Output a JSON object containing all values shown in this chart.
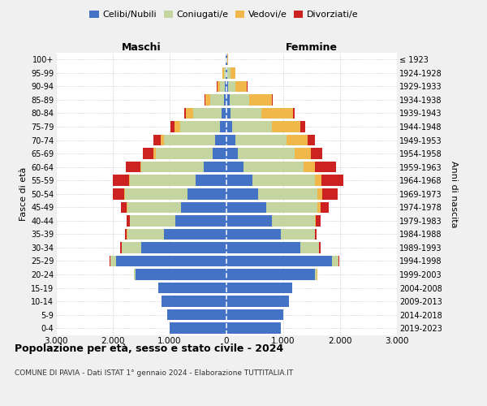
{
  "age_groups": [
    "0-4",
    "5-9",
    "10-14",
    "15-19",
    "20-24",
    "25-29",
    "30-34",
    "35-39",
    "40-44",
    "45-49",
    "50-54",
    "55-59",
    "60-64",
    "65-69",
    "70-74",
    "75-79",
    "80-84",
    "85-89",
    "90-94",
    "95-99",
    "100+"
  ],
  "birth_years": [
    "2019-2023",
    "2014-2018",
    "2009-2013",
    "2004-2008",
    "1999-2003",
    "1994-1998",
    "1989-1993",
    "1984-1988",
    "1979-1983",
    "1974-1978",
    "1969-1973",
    "1964-1968",
    "1959-1963",
    "1954-1958",
    "1949-1953",
    "1944-1948",
    "1939-1943",
    "1934-1938",
    "1929-1933",
    "1924-1928",
    "≤ 1923"
  ],
  "colors": {
    "celibi": "#4472C4",
    "coniugati": "#c5d5a0",
    "vedovi": "#f0b84a",
    "divorziati": "#cc2222"
  },
  "male": {
    "celibi": [
      1000,
      1050,
      1150,
      1200,
      1600,
      1950,
      1500,
      1100,
      900,
      800,
      680,
      550,
      400,
      250,
      200,
      120,
      80,
      40,
      30,
      20,
      10
    ],
    "coniugati": [
      0,
      0,
      0,
      0,
      30,
      100,
      350,
      650,
      800,
      950,
      1100,
      1150,
      1100,
      1000,
      900,
      700,
      500,
      250,
      80,
      30,
      5
    ],
    "vedovi": [
      0,
      0,
      0,
      0,
      0,
      0,
      0,
      5,
      5,
      10,
      15,
      20,
      20,
      40,
      60,
      100,
      130,
      80,
      50,
      20,
      5
    ],
    "divorziati": [
      0,
      0,
      0,
      0,
      5,
      5,
      20,
      30,
      50,
      100,
      200,
      280,
      250,
      180,
      120,
      60,
      30,
      10,
      5,
      0,
      0
    ]
  },
  "female": {
    "nubili": [
      950,
      1000,
      1100,
      1150,
      1550,
      1850,
      1300,
      950,
      800,
      700,
      550,
      450,
      300,
      200,
      150,
      100,
      70,
      50,
      30,
      20,
      10
    ],
    "coniugate": [
      0,
      0,
      0,
      0,
      40,
      120,
      330,
      600,
      750,
      900,
      1050,
      1100,
      1050,
      1000,
      900,
      700,
      550,
      350,
      130,
      50,
      5
    ],
    "vedove": [
      0,
      0,
      0,
      0,
      5,
      5,
      5,
      10,
      20,
      50,
      80,
      120,
      200,
      280,
      380,
      500,
      550,
      400,
      200,
      80,
      10
    ],
    "divorziate": [
      0,
      0,
      0,
      0,
      5,
      5,
      20,
      30,
      80,
      150,
      280,
      380,
      380,
      200,
      120,
      80,
      30,
      20,
      10,
      0,
      0
    ]
  },
  "title": "Popolazione per età, sesso e stato civile - 2024",
  "subtitle": "COMUNE DI PAVIA - Dati ISTAT 1° gennaio 2024 - Elaborazione TUTTITALIA.IT",
  "xlabel_left": "Maschi",
  "xlabel_right": "Femmine",
  "ylabel_left": "Fasce di età",
  "ylabel_right": "Anni di nascita",
  "xlim": 3000,
  "xticks": [
    -3000,
    -2000,
    -1000,
    0,
    1000,
    2000,
    3000
  ],
  "legend_labels": [
    "Celibi/Nubili",
    "Coniugati/e",
    "Vedovi/e",
    "Divorziati/e"
  ],
  "bg_color": "#f0f0f0",
  "plot_bg_color": "#ffffff"
}
